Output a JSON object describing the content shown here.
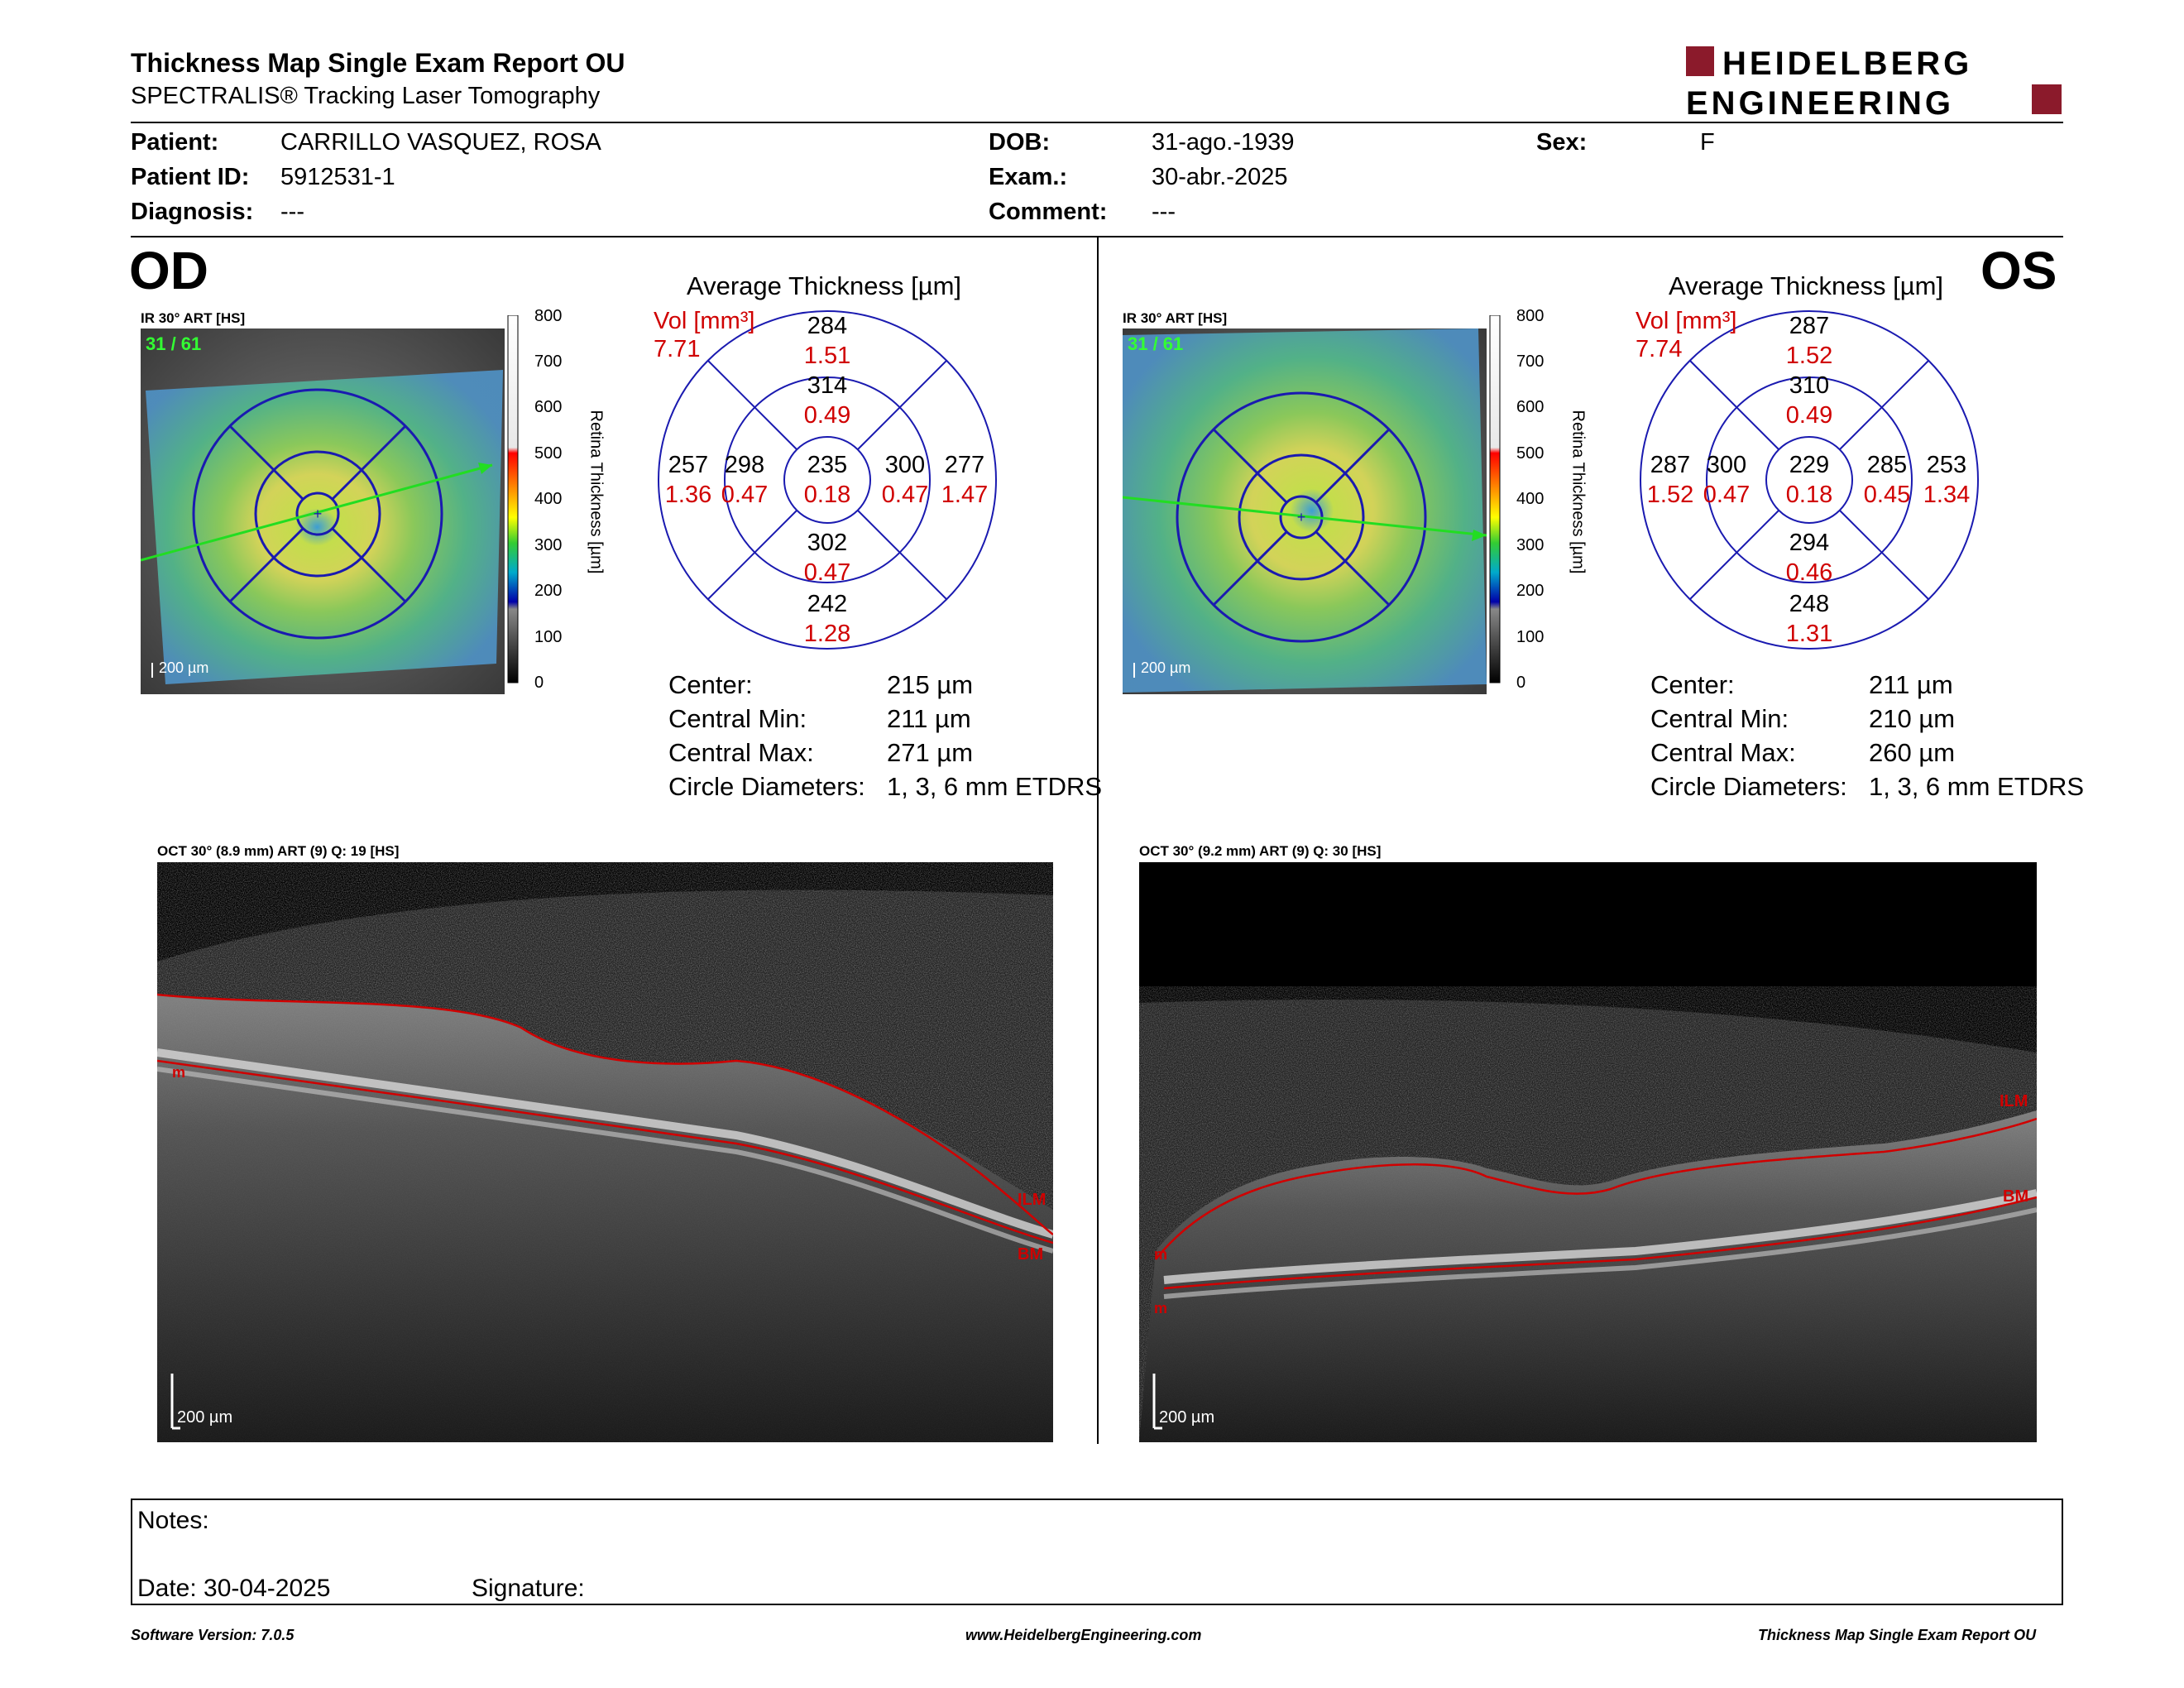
{
  "header": {
    "title": "Thickness Map Single Exam Report OU",
    "subtitle": "SPECTRALIS® Tracking Laser Tomography",
    "logo_line1": "HEIDELBERG",
    "logo_line2": "ENGINEERING",
    "brand_color": "#8b1a2b"
  },
  "patient": {
    "patient_label": "Patient:",
    "patient_value": "CARRILLO VASQUEZ, ROSA",
    "id_label": "Patient ID:",
    "id_value": "5912531-1",
    "diagnosis_label": "Diagnosis:",
    "diagnosis_value": "---",
    "dob_label": "DOB:",
    "dob_value": "31-ago.-1939",
    "exam_label": "Exam.:",
    "exam_value": "30-abr.-2025",
    "comment_label": "Comment:",
    "comment_value": "---",
    "sex_label": "Sex:",
    "sex_value": "F"
  },
  "scale": {
    "ticks": [
      "800",
      "700",
      "600",
      "500",
      "400",
      "300",
      "200",
      "100",
      "0"
    ],
    "label": "Retina Thickness [µm]"
  },
  "od": {
    "eye": "OD",
    "ir_label": "IR 30° ART [HS]",
    "frame": "31 / 61",
    "scale_bar": "200 µm",
    "avg_title": "Average Thickness [µm]",
    "vol_label": "Vol [mm³]",
    "vol_value": "7.71",
    "grid": {
      "center": {
        "t": "235",
        "v": "0.18"
      },
      "inner_sup": {
        "t": "314",
        "v": "0.49"
      },
      "inner_inf": {
        "t": "302",
        "v": "0.47"
      },
      "inner_nasal_left": {
        "t": "298",
        "v": "0.47"
      },
      "inner_right": {
        "t": "300",
        "v": "0.47"
      },
      "outer_sup": {
        "t": "284",
        "v": "1.51"
      },
      "outer_inf": {
        "t": "242",
        "v": "1.28"
      },
      "outer_left": {
        "t": "257",
        "v": "1.36"
      },
      "outer_right": {
        "t": "277",
        "v": "1.47"
      }
    },
    "metrics": [
      {
        "label": "Center:",
        "value": "215 µm"
      },
      {
        "label": "Central Min:",
        "value": "211 µm"
      },
      {
        "label": "Central Max:",
        "value": "271 µm"
      },
      {
        "label": "Circle Diameters:",
        "value": "1, 3, 6 mm ETDRS"
      }
    ],
    "oct_label": "OCT 30° (8.9 mm) ART (9) Q: 19 [HS]",
    "oct_scale": "200 µm",
    "oct_marks": {
      "ilm": "ILM",
      "bm": "BM",
      "m": "m"
    }
  },
  "os": {
    "eye": "OS",
    "ir_label": "IR 30° ART [HS]",
    "frame": "31 / 61",
    "scale_bar": "200 µm",
    "avg_title": "Average Thickness [µm]",
    "vol_label": "Vol [mm³]",
    "vol_value": "7.74",
    "grid": {
      "center": {
        "t": "229",
        "v": "0.18"
      },
      "inner_sup": {
        "t": "310",
        "v": "0.49"
      },
      "inner_inf": {
        "t": "294",
        "v": "0.46"
      },
      "inner_nasal_left": {
        "t": "300",
        "v": "0.47"
      },
      "inner_right": {
        "t": "285",
        "v": "0.45"
      },
      "outer_sup": {
        "t": "287",
        "v": "1.52"
      },
      "outer_inf": {
        "t": "248",
        "v": "1.31"
      },
      "outer_left": {
        "t": "287",
        "v": "1.52"
      },
      "outer_right": {
        "t": "253",
        "v": "1.34"
      }
    },
    "metrics": [
      {
        "label": "Center:",
        "value": "211 µm"
      },
      {
        "label": "Central Min:",
        "value": "210 µm"
      },
      {
        "label": "Central Max:",
        "value": "260 µm"
      },
      {
        "label": "Circle Diameters:",
        "value": "1, 3, 6 mm ETDRS"
      }
    ],
    "oct_label": "OCT 30° (9.2 mm) ART (9) Q: 30 [HS]",
    "oct_scale": "200 µm",
    "oct_marks": {
      "ilm": "ILM",
      "bm": "BM",
      "m": "m"
    }
  },
  "notes": {
    "notes_label": "Notes:",
    "date_label": "Date: 30-04-2025",
    "signature_label": "Signature:"
  },
  "footer": {
    "software": "Software Version: 7.0.5",
    "website": "www.HeidelbergEngineering.com",
    "report": "Thickness Map Single Exam Report OU"
  }
}
